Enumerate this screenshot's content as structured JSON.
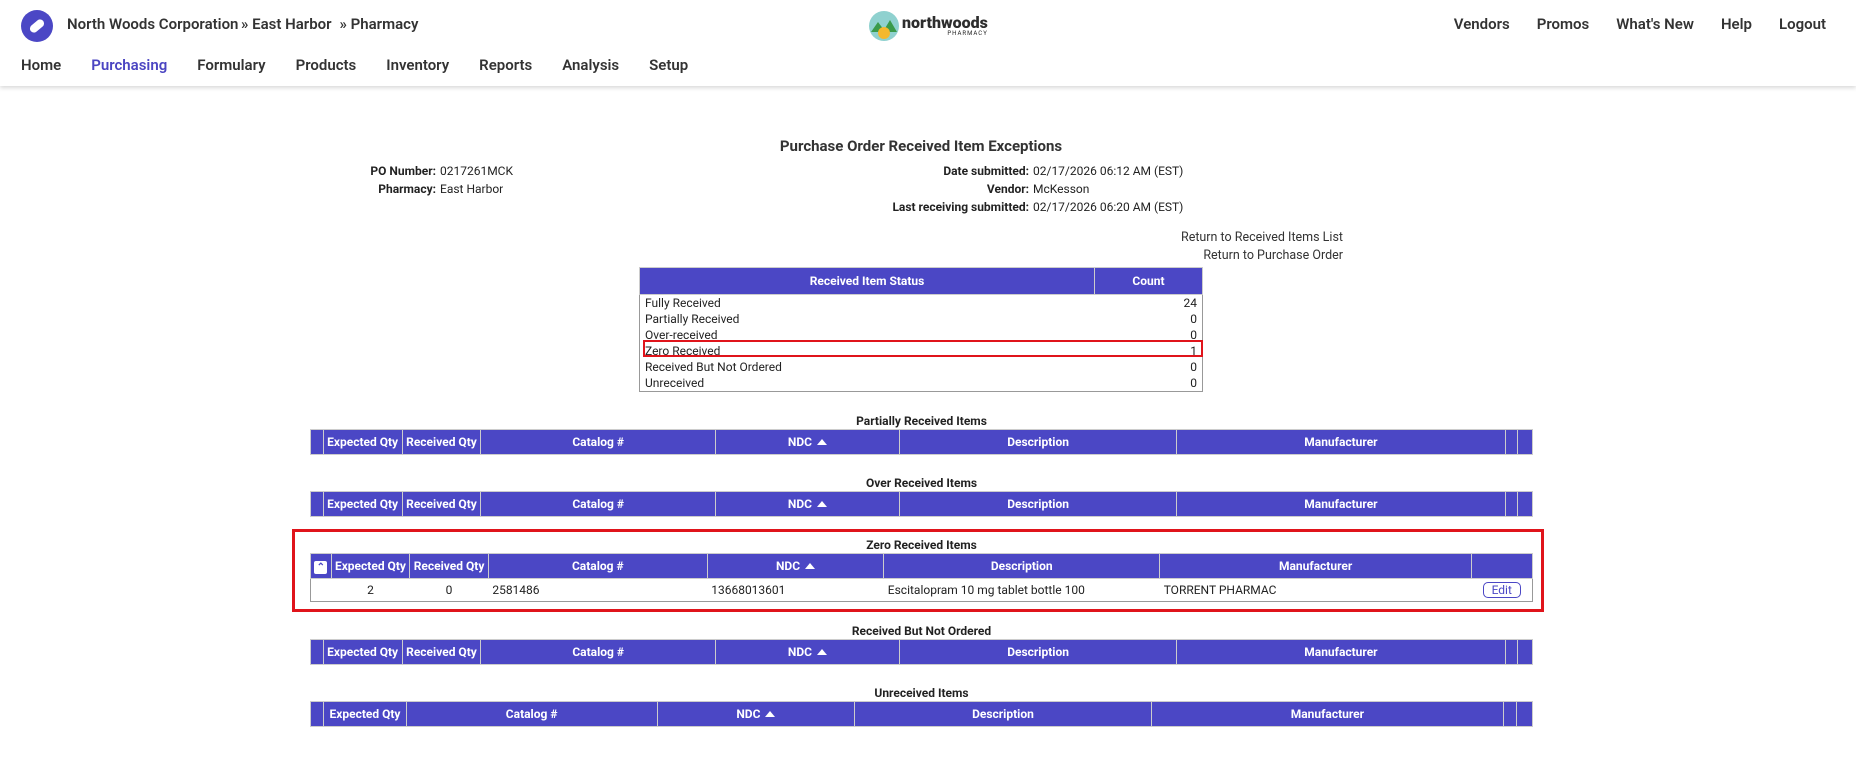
{
  "header": {
    "company": "North Woods Corporation",
    "breadcrumb": [
      "» East Harbor",
      "» Pharmacy"
    ],
    "logo": "northwoods",
    "logo_sub": "PHARMACY",
    "top_links": [
      "Vendors",
      "Promos",
      "What's New",
      "Help",
      "Logout"
    ],
    "nav": [
      "Home",
      "Purchasing",
      "Formulary",
      "Products",
      "Inventory",
      "Reports",
      "Analysis",
      "Setup"
    ],
    "active_nav": "Purchasing"
  },
  "page": {
    "title": "Purchase Order Received Item Exceptions",
    "info_left": [
      {
        "label": "PO Number:",
        "value": "0217261MCK"
      },
      {
        "label": "Pharmacy:",
        "value": "East Harbor"
      }
    ],
    "info_right": [
      {
        "label": "Date submitted:",
        "value": "02/17/2026 06:12 AM (EST)"
      },
      {
        "label": "Vendor:",
        "value": "McKesson"
      },
      {
        "label": "Last receiving submitted:",
        "value": "02/17/2026 06:20 AM (EST)"
      }
    ],
    "links": [
      "Return to Received Items List",
      "Return to Purchase Order"
    ]
  },
  "status_table": {
    "headers": [
      "Received Item Status",
      "Count"
    ],
    "rows": [
      [
        "Fully Received",
        24
      ],
      [
        "Partially Received",
        0
      ],
      [
        "Over-received",
        0
      ],
      [
        "Zero Received",
        1
      ],
      [
        "Received But Not Ordered",
        0
      ],
      [
        "Unreceived",
        0
      ]
    ]
  },
  "sections": [
    {
      "title": "Partially Received Items",
      "columns": [
        "Expected Qty",
        "Received Qty",
        "Catalog #",
        "NDC",
        "Description",
        "Manufacturer"
      ],
      "rows": []
    },
    {
      "title": "Over Received Items",
      "columns": [
        "Expected Qty",
        "Received Qty",
        "Catalog #",
        "NDC",
        "Description",
        "Manufacturer"
      ],
      "rows": []
    },
    {
      "title": "Zero Received Items",
      "columns": [
        "Expected Qty",
        "Received Qty",
        "Catalog #",
        "NDC",
        "Description",
        "Manufacturer"
      ],
      "rows": [
        {
          "cells": [
            2,
            0,
            "2581486",
            "13668013601",
            "Escitalopram 10 mg tablet bottle 100",
            "TORRENT PHARMAC"
          ],
          "action": "Edit"
        }
      ]
    },
    {
      "title": "Received But Not Ordered",
      "columns": [
        "Expected Qty",
        "Received Qty",
        "Catalog #",
        "NDC",
        "Description",
        "Manufacturer"
      ],
      "rows": []
    },
    {
      "title": "Unreceived Items",
      "columns": [
        "Expected Qty",
        "Catalog #",
        "NDC",
        "Description",
        "Manufacturer"
      ],
      "rows": []
    }
  ]
}
